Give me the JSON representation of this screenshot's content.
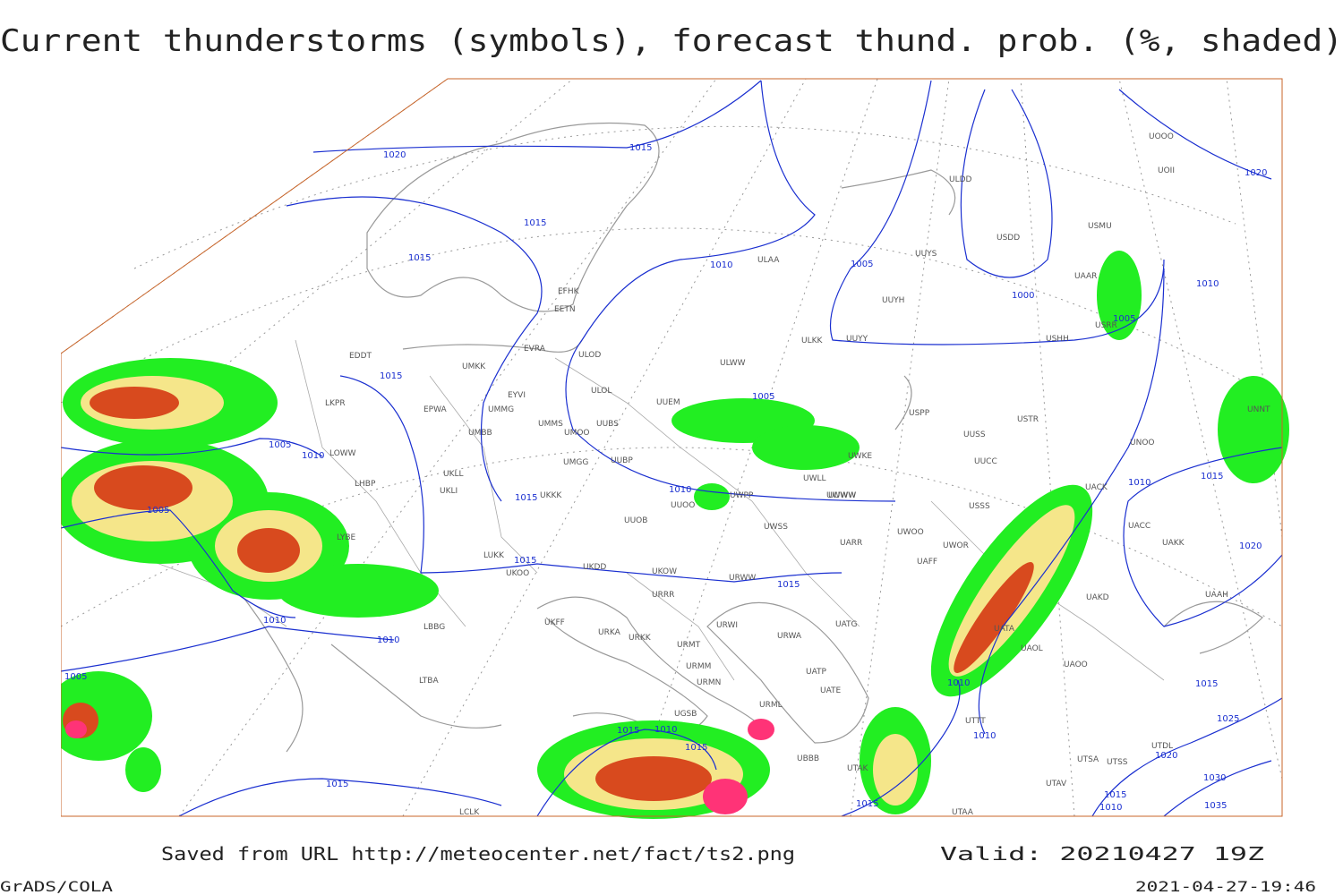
{
  "header": {
    "title": "Current thunderstorms (symbols), forecast thund. prob. (%, shaded)"
  },
  "stations": [
    "ULDD",
    "UUYS",
    "USDD",
    "USMU",
    "ULAA",
    "UUYH",
    "USHH",
    "ULKK",
    "UUYY",
    "ULWW",
    "ULOD",
    "UMKK",
    "EDDT",
    "EPWA",
    "LKPR",
    "ULOL",
    "UMMG",
    "UUEM",
    "UUSS",
    "USTR",
    "USPP",
    "UMMS",
    "UMOO",
    "UUBS",
    "UMBB",
    "LOWW",
    "LHBP",
    "UMGG",
    "UUBP",
    "UKLL",
    "UKLI",
    "UUCC",
    "UWWW",
    "UWPP",
    "UUOO",
    "UKKK",
    "UUOB",
    "LYBE",
    "UWSS",
    "UARR",
    "UWOO",
    "UWOR",
    "UAFF",
    "UKDD",
    "UKOO",
    "LUKK",
    "UKOW",
    "URWW",
    "URRR",
    "UKFF",
    "URKA",
    "URKK",
    "URWI",
    "UATG",
    "UATA",
    "URMT",
    "URWA",
    "UAOL",
    "UAOO",
    "URMM",
    "URMN",
    "UATP",
    "UATE",
    "URML",
    "UTTT",
    "UBBB",
    "UTAK",
    "UTSA",
    "UTSS",
    "UTAV",
    "UTAA",
    "UAKD",
    "UAAH",
    "UAKK",
    "UACC",
    "UOOO",
    "UOII",
    "LTBA",
    "LBBG",
    "LCLK",
    "UGSB",
    "UTDL",
    "EFHK",
    "EETN",
    "EVRA",
    "EYVI",
    "UUWW",
    "UWKE",
    "UWLL",
    "UNOO",
    "UACK",
    "UNNT",
    "UAAR",
    "USRR",
    "USSS"
  ],
  "isobar_labels": [
    "1020",
    "1015",
    "1015",
    "1015",
    "1010",
    "1005",
    "1000",
    "1005",
    "1010",
    "1020",
    "1015",
    "1005",
    "1010",
    "1005",
    "1005",
    "1015",
    "1010",
    "1010",
    "1015",
    "1020",
    "1015",
    "1015",
    "1010",
    "1010",
    "1005",
    "1010",
    "1015",
    "1010",
    "1015",
    "1010",
    "1015",
    "1025",
    "1020",
    "1015",
    "1015",
    "1030",
    "1015",
    "1035",
    "1010"
  ],
  "footer": {
    "source": "Saved from URL http://meteocenter.net/fact/ts2.png",
    "valid": "Valid: 20210427 19Z",
    "software": "GrADS/COLA",
    "timestamp": "2021-04-27-19:46"
  }
}
